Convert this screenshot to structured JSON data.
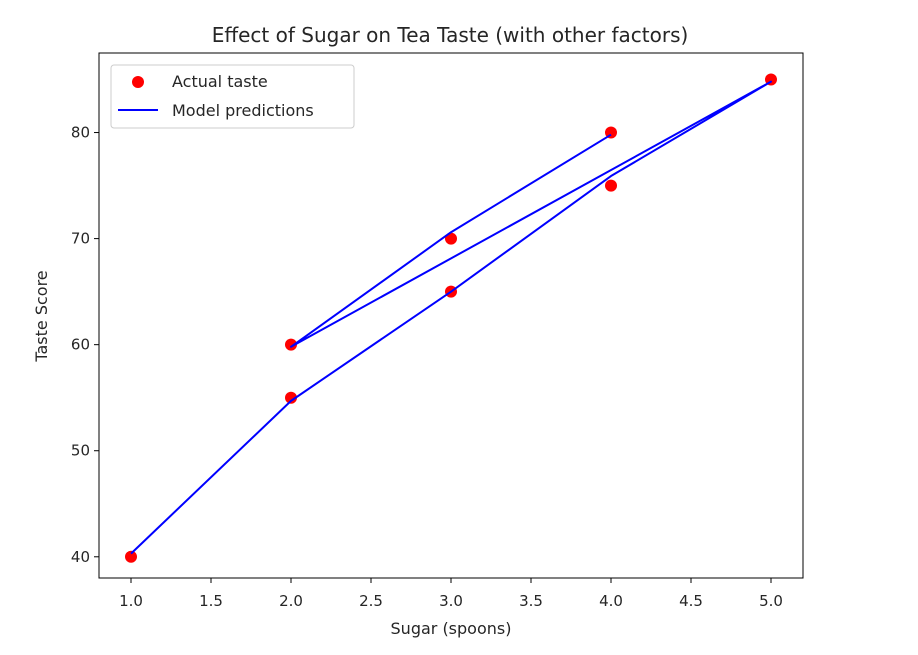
{
  "chart_data": {
    "type": "scatter",
    "title": "Effect of Sugar on Tea Taste (with other factors)",
    "xlabel": "Sugar (spoons)",
    "ylabel": "Taste Score",
    "xlim": [
      0.8,
      5.2
    ],
    "ylim": [
      38,
      87.5
    ],
    "xticks": [
      1.0,
      1.5,
      2.0,
      2.5,
      3.0,
      3.5,
      4.0,
      4.5,
      5.0
    ],
    "xtick_labels": [
      "1.0",
      "1.5",
      "2.0",
      "2.5",
      "3.0",
      "3.5",
      "4.0",
      "4.5",
      "5.0"
    ],
    "yticks": [
      40,
      50,
      60,
      70,
      80
    ],
    "ytick_labels": [
      "40",
      "50",
      "60",
      "70",
      "80"
    ],
    "grid": false,
    "legend": "top-left",
    "series": [
      {
        "name": "Actual taste",
        "kind": "scatter",
        "color": "#ff0000",
        "points": [
          {
            "x": 1,
            "y": 40
          },
          {
            "x": 2,
            "y": 55
          },
          {
            "x": 3,
            "y": 65
          },
          {
            "x": 4,
            "y": 75
          },
          {
            "x": 5,
            "y": 85
          },
          {
            "x": 2,
            "y": 60
          },
          {
            "x": 3,
            "y": 70
          },
          {
            "x": 4,
            "y": 80
          }
        ]
      },
      {
        "name": "Model predictions",
        "kind": "line",
        "color": "#0000ff",
        "points": [
          {
            "x": 1,
            "y": 40.3
          },
          {
            "x": 2,
            "y": 54.7
          },
          {
            "x": 3,
            "y": 65.0
          },
          {
            "x": 4,
            "y": 75.9
          },
          {
            "x": 5,
            "y": 84.8
          },
          {
            "x": 2,
            "y": 59.8
          },
          {
            "x": 3,
            "y": 70.6
          },
          {
            "x": 4,
            "y": 79.8
          }
        ]
      }
    ]
  }
}
